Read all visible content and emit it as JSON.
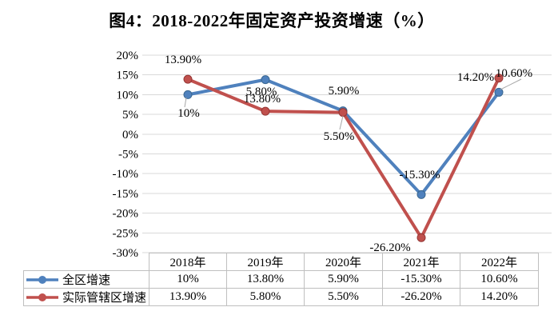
{
  "chart_data": {
    "type": "line",
    "title": "图4：2018-2022年固定资产投资增速（%）",
    "categories": [
      "2018年",
      "2019年",
      "2020年",
      "2021年",
      "2022年"
    ],
    "series": [
      {
        "name": "全区增速",
        "color": "#4F81BD",
        "marker_edge": "#3A6790",
        "values": [
          10,
          13.8,
          5.9,
          -15.3,
          10.6
        ],
        "labels": [
          "10%",
          "13.80%",
          "5.90%",
          "-15.30%",
          "10.60%"
        ]
      },
      {
        "name": "实际管辖区增速",
        "color": "#C0504D",
        "marker_edge": "#943634",
        "values": [
          13.9,
          5.8,
          5.5,
          -26.2,
          14.2
        ],
        "labels": [
          "13.90%",
          "5.80%",
          "5.50%",
          "-26.20%",
          "14.20%"
        ]
      }
    ],
    "ylim": [
      -30,
      20
    ],
    "ytick_step": 5,
    "ytick_labels": [
      "20%",
      "15%",
      "10%",
      "5%",
      "0%",
      "-5%",
      "-10%",
      "-15%",
      "-20%",
      "-25%",
      "-30%"
    ],
    "grid": true,
    "gridline_color": "#d9d9d9",
    "leader_line_color": "#a6a6a6",
    "table_border_color": "#bfbfbf",
    "text_color": "#000000",
    "legend_position": "table-left"
  }
}
